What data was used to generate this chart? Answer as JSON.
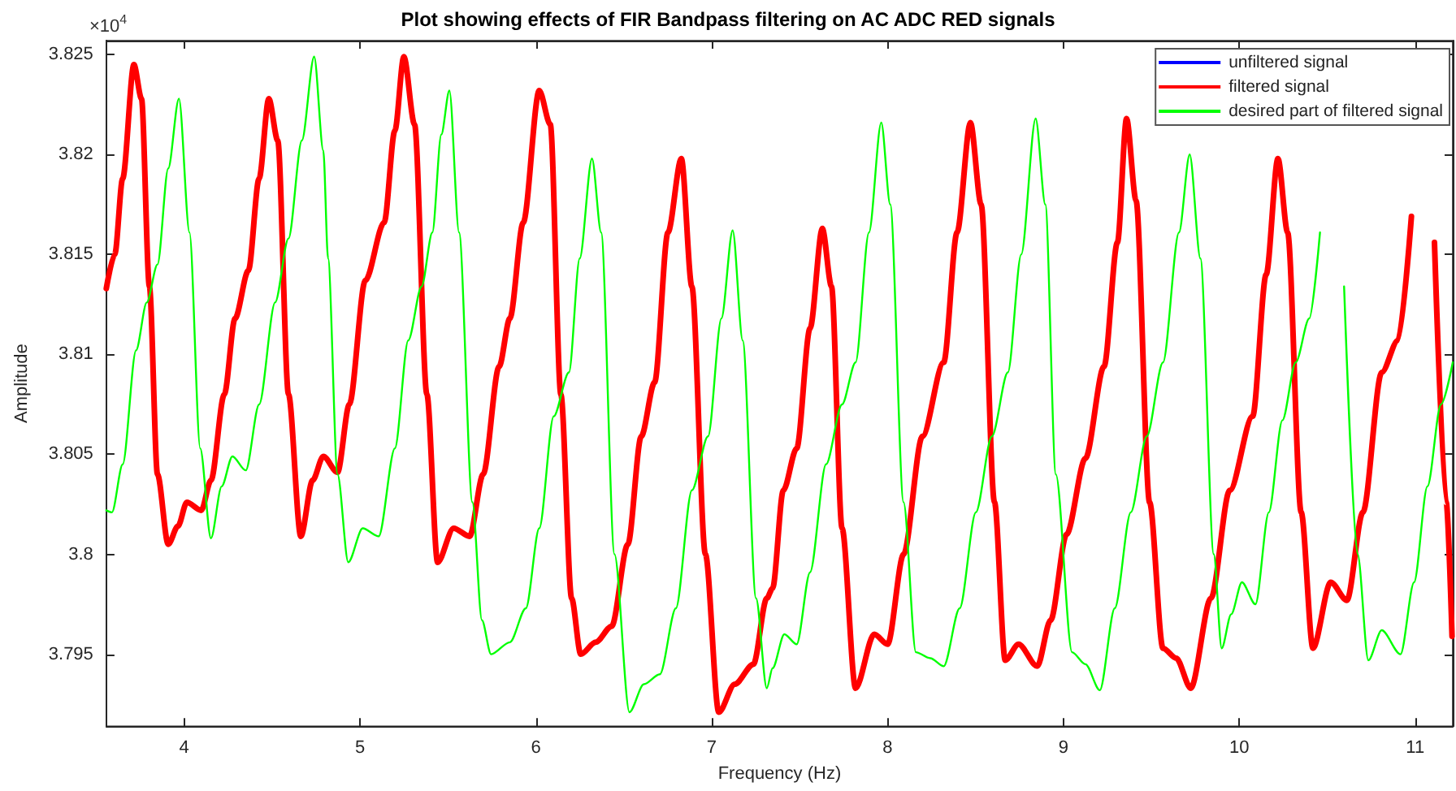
{
  "chart_data": {
    "type": "line",
    "title": "Plot showing effects of FIR Bandpass filtering on AC ADC RED signals",
    "xlabel": "Frequency (Hz)",
    "ylabel": "Amplitude",
    "annotations": [
      "×10$^{4}$"
    ],
    "xlim": [
      3.557,
      11.214
    ],
    "xticks": [
      4,
      5,
      6,
      7,
      8,
      9,
      10,
      11
    ],
    "ylim": [
      3.7914,
      3.8257
    ],
    "yticks": [
      3.795,
      3.8,
      3.805,
      3.81,
      3.815,
      3.82,
      3.825
    ],
    "legend": "top right",
    "line_style": "solid",
    "series": [
      {
        "name": "unfiltered signal",
        "color": "#0000ff"
      },
      {
        "name": "filtered signal",
        "color": "#ff0000",
        "x": [
          3.557,
          3.605,
          3.65,
          3.714,
          3.757,
          3.802,
          3.848,
          3.909,
          3.964,
          4.015,
          4.097,
          4.152,
          4.228,
          4.289,
          4.365,
          4.426,
          4.481,
          4.532,
          4.593,
          4.663,
          4.73,
          4.791,
          4.872,
          4.939,
          5.03,
          5.137,
          5.198,
          5.249,
          5.31,
          5.38,
          5.441,
          5.532,
          5.623,
          5.7,
          5.791,
          5.852,
          5.928,
          6.019,
          6.082,
          6.142,
          6.203,
          6.255,
          6.34,
          6.431,
          6.523,
          6.599,
          6.675,
          6.751,
          6.827,
          6.887,
          6.964,
          7.04,
          7.131,
          7.237,
          7.313,
          7.346,
          7.407,
          7.483,
          7.559,
          7.629,
          7.681,
          7.741,
          7.818,
          7.924,
          8.0,
          8.091,
          8.198,
          8.319,
          8.395,
          8.471,
          8.532,
          8.608,
          8.669,
          8.745,
          8.851,
          8.927,
          9.018,
          9.125,
          9.231,
          9.307,
          9.359,
          9.413,
          9.49,
          9.566,
          9.642,
          9.724,
          9.839,
          9.946,
          10.076,
          10.153,
          10.22,
          10.275,
          10.352,
          10.419,
          10.52,
          10.612,
          10.703,
          10.81,
          10.902,
          10.979,
          11.049,
          11.11,
          11.177,
          11.21
        ],
        "values": [
          3.8133,
          3.815,
          3.8188,
          3.8245,
          3.8228,
          3.8134,
          3.804,
          3.8005,
          3.8014,
          3.8026,
          3.8022,
          3.8037,
          3.808,
          3.8118,
          3.8142,
          3.8188,
          3.8228,
          3.8207,
          3.808,
          3.8009,
          3.8037,
          3.8049,
          3.8041,
          3.8075,
          3.8137,
          3.8166,
          3.8212,
          3.8249,
          3.8215,
          3.808,
          3.7996,
          3.8013,
          3.8009,
          3.804,
          3.8094,
          3.8118,
          3.8166,
          3.8232,
          3.8215,
          3.808,
          3.7978,
          3.795,
          3.7956,
          3.7964,
          3.8005,
          3.8059,
          3.8086,
          3.8161,
          3.8198,
          3.8134,
          3.8,
          3.7921,
          3.7935,
          3.7945,
          3.7978,
          3.7983,
          3.8032,
          3.8053,
          3.8113,
          3.8163,
          3.8134,
          3.8013,
          3.7933,
          3.796,
          3.7955,
          3.8,
          3.8059,
          3.8096,
          3.8161,
          3.8216,
          3.8175,
          3.8026,
          3.7947,
          3.7955,
          3.7944,
          3.7967,
          3.801,
          3.8048,
          3.8094,
          3.8156,
          3.8218,
          3.8177,
          3.8026,
          3.7953,
          3.7948,
          3.7933,
          3.7978,
          3.8032,
          3.8069,
          3.814,
          3.8198,
          3.8161,
          3.8021,
          3.7953,
          3.7986,
          3.7977,
          3.8021,
          3.8091,
          3.8107,
          3.8169,
          null,
          3.8156,
          3.8026,
          3.7959
        ]
      },
      {
        "name": "desired part of filtered signal",
        "color": "#00ff00",
        "x": [
          3.557,
          3.589,
          3.65,
          3.726,
          3.787,
          3.848,
          3.909,
          3.97,
          4.03,
          4.091,
          4.152,
          4.213,
          4.274,
          4.35,
          4.426,
          4.517,
          4.593,
          4.669,
          4.739,
          4.791,
          4.818,
          4.872,
          4.933,
          5.015,
          5.106,
          5.198,
          5.274,
          5.35,
          5.411,
          5.462,
          5.508,
          5.563,
          5.639,
          5.693,
          5.745,
          5.852,
          5.943,
          6.019,
          6.101,
          6.188,
          6.249,
          6.319,
          6.371,
          6.447,
          6.532,
          6.614,
          6.705,
          6.796,
          6.887,
          6.979,
          7.055,
          7.119,
          7.176,
          7.252,
          7.313,
          7.346,
          7.413,
          7.483,
          7.559,
          7.65,
          7.741,
          7.818,
          7.894,
          7.964,
          8.015,
          8.091,
          8.161,
          8.243,
          8.319,
          8.41,
          8.502,
          8.593,
          8.684,
          8.76,
          8.842,
          8.897,
          8.957,
          9.049,
          9.125,
          9.207,
          9.292,
          9.383,
          9.474,
          9.566,
          9.657,
          9.718,
          9.779,
          9.855,
          9.9,
          9.954,
          10.015,
          10.092,
          10.168,
          10.245,
          10.321,
          10.398,
          10.459,
          10.55,
          10.596,
          10.673,
          10.734,
          10.81,
          10.917,
          10.994,
          11.07,
          11.147,
          11.214
        ],
        "values": [
          3.8022,
          3.8021,
          3.8045,
          3.8102,
          3.8126,
          3.8145,
          3.8193,
          3.8228,
          3.8161,
          3.8053,
          3.8008,
          3.8034,
          3.8049,
          3.8042,
          3.8075,
          3.8126,
          3.8158,
          3.8207,
          3.8249,
          3.8202,
          3.8148,
          3.804,
          3.7996,
          3.8013,
          3.8009,
          3.8053,
          3.8107,
          3.8134,
          3.8161,
          3.821,
          3.8232,
          3.8161,
          3.8026,
          3.7967,
          3.795,
          3.7956,
          3.7973,
          3.8013,
          3.8069,
          3.8091,
          3.8148,
          3.8198,
          3.8161,
          3.8,
          3.7921,
          3.7935,
          3.794,
          3.7973,
          3.8032,
          3.8059,
          3.8118,
          3.8162,
          3.8107,
          3.7978,
          3.7933,
          3.7943,
          3.796,
          3.7955,
          3.7991,
          3.8045,
          3.8075,
          3.8096,
          3.8161,
          3.8216,
          3.8175,
          3.8026,
          3.7951,
          3.7948,
          3.7944,
          3.7973,
          3.8021,
          3.8059,
          3.8091,
          3.815,
          3.8218,
          3.8175,
          3.804,
          3.7951,
          3.7945,
          3.7932,
          3.7973,
          3.8021,
          3.8059,
          3.8096,
          3.8161,
          3.82,
          3.8148,
          3.8,
          3.7953,
          3.797,
          3.7986,
          3.7975,
          3.8021,
          3.8067,
          3.8096,
          3.8118,
          3.8161,
          null,
          3.8134,
          3.8,
          3.7947,
          3.7962,
          3.795,
          3.7986,
          3.8034,
          3.8075,
          3.8096
        ]
      }
    ]
  }
}
